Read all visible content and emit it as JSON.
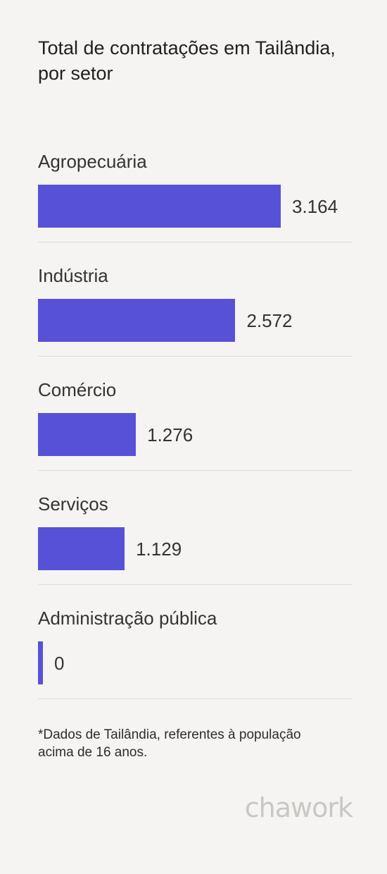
{
  "chart_data": {
    "type": "bar",
    "title": "Total de contratações em Tailândia, por setor",
    "categories": [
      "Agropecuária",
      "Indústria",
      "Comércio",
      "Serviços",
      "Administração pública"
    ],
    "values": [
      3164,
      2572,
      1276,
      1129,
      0
    ],
    "value_labels": [
      "3.164",
      "2.572",
      "1.276",
      "1.129",
      "0"
    ],
    "orientation": "horizontal",
    "bar_color": "#5751d8",
    "grid": false
  },
  "footnote": "*Dados de Tailândia, referentes à população acima de 16 anos.",
  "brand": "chawork"
}
